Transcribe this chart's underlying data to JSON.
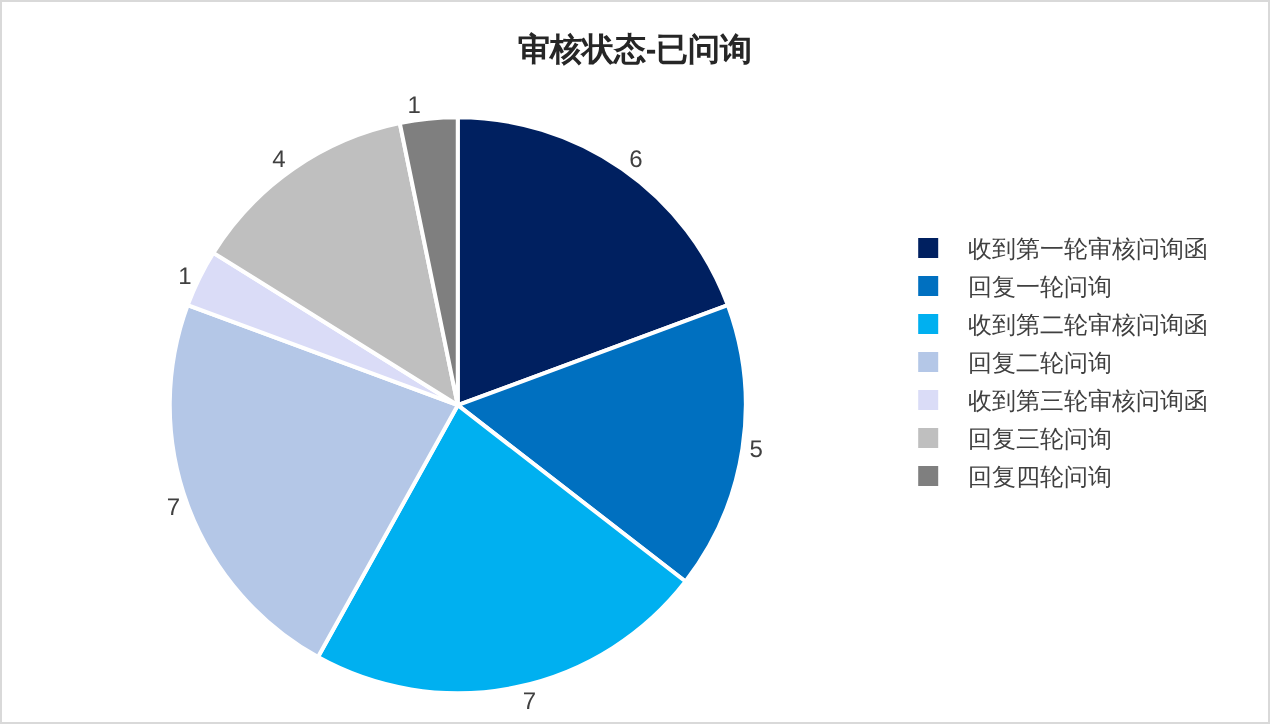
{
  "chart_data": {
    "type": "pie",
    "title": "审核状态-已问询",
    "categories": [
      "收到第一轮审核问询函",
      "回复一轮问询",
      "收到第二轮审核问询函",
      "回复二轮问询",
      "收到第三轮审核问询函",
      "回复三轮问询",
      "回复四轮问询"
    ],
    "values": [
      6,
      5,
      7,
      7,
      1,
      4,
      1
    ],
    "colors": [
      "#002060",
      "#0070c0",
      "#00b0f0",
      "#b4c7e7",
      "#dadcf7",
      "#bfbfbf",
      "#7f7f7f"
    ],
    "data_labels": true,
    "legend": "right"
  }
}
